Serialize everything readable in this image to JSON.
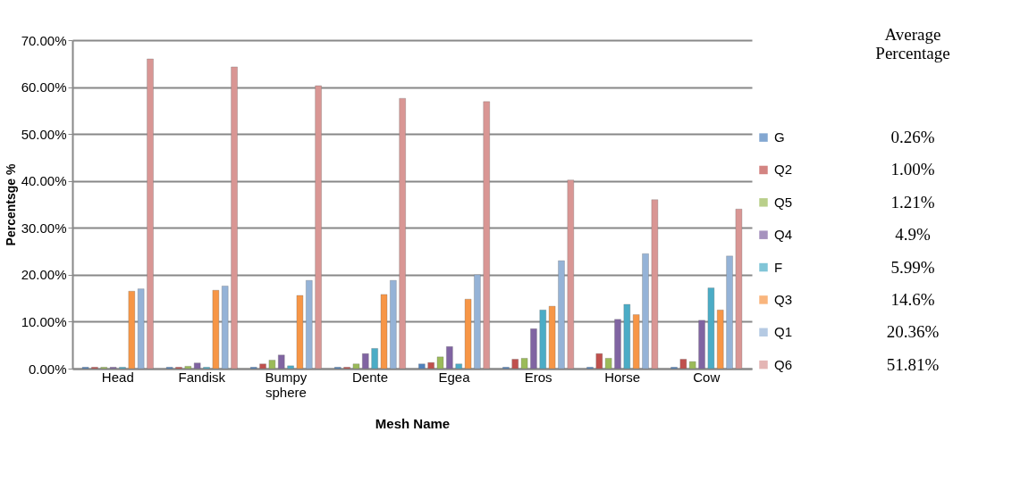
{
  "chart_data": {
    "type": "bar",
    "xlabel": "Mesh Name",
    "ylabel": "Percentsge %",
    "categories": [
      "Head",
      "Fandisk",
      "Bumpy sphere",
      "Dente",
      "Egea",
      "Eros",
      "Horse",
      "Cow"
    ],
    "series": [
      {
        "name": "G",
        "color": "#4f81bd",
        "values": [
          0.3,
          0.3,
          0.3,
          0.3,
          1.0,
          0.3,
          0.3,
          0.3
        ]
      },
      {
        "name": "Q2",
        "color": "#c0504d",
        "values": [
          0.3,
          0.3,
          1.0,
          0.3,
          1.3,
          2.0,
          3.2,
          2.0
        ]
      },
      {
        "name": "Q5",
        "color": "#9bbb59",
        "values": [
          0.3,
          0.5,
          1.8,
          1.0,
          2.5,
          2.2,
          2.2,
          1.5
        ]
      },
      {
        "name": "Q4",
        "color": "#8064a2",
        "values": [
          0.3,
          1.2,
          2.9,
          3.2,
          4.7,
          8.5,
          10.5,
          10.3
        ]
      },
      {
        "name": "F",
        "color": "#4bacc6",
        "values": [
          0.3,
          0.3,
          0.6,
          4.3,
          1.0,
          12.5,
          13.7,
          17.2
        ]
      },
      {
        "name": "Q3",
        "color": "#f79646",
        "values": [
          16.5,
          16.7,
          15.6,
          15.8,
          14.8,
          13.3,
          11.5,
          12.5
        ]
      },
      {
        "name": "Q1",
        "color": "#95b3d7",
        "values": [
          17.0,
          17.6,
          18.8,
          18.8,
          20.0,
          23.0,
          24.5,
          24.0
        ]
      },
      {
        "name": "Q6",
        "color": "#d99694",
        "values": [
          66.0,
          64.3,
          60.3,
          57.6,
          56.9,
          40.2,
          36.0,
          34.0
        ]
      }
    ],
    "ylim": [
      0,
      70
    ],
    "yticks": [
      {
        "value": 0,
        "label": "0.00%"
      },
      {
        "value": 10,
        "label": "10.00%"
      },
      {
        "value": 20,
        "label": "20.00%"
      },
      {
        "value": 30,
        "label": "30.00%"
      },
      {
        "value": 40,
        "label": "40.00%"
      },
      {
        "value": 50,
        "label": "50.00%"
      },
      {
        "value": 60,
        "label": "60.00%"
      },
      {
        "value": 70,
        "label": "70.00%"
      }
    ],
    "grid": "y",
    "legend": "right",
    "annotations": [
      "Average Percentage",
      "0.26%",
      "1.00%",
      "1.21%",
      "4.9%",
      "5.99%",
      "14.6%",
      "20.36%",
      "51.81%"
    ]
  }
}
